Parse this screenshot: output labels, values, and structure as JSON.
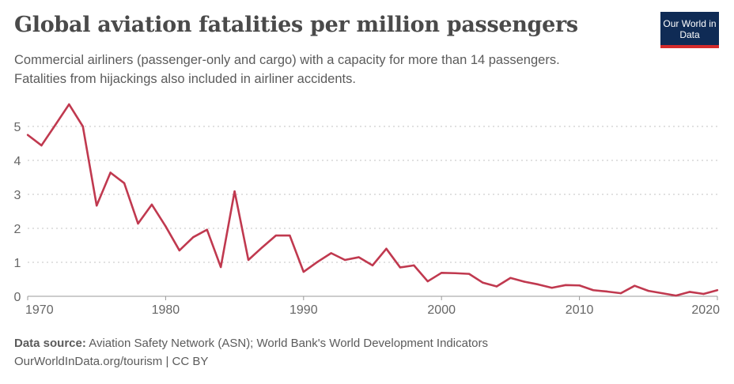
{
  "header": {
    "title": "Global aviation fatalities per million passengers",
    "subtitle": "Commercial airliners (passenger-only and cargo) with a capacity for more than 14 passengers. Fatalities from hijackings also included in airliner accidents.",
    "logo_text": "Our World in Data"
  },
  "footer": {
    "source_label": "Data source:",
    "source_text": "Aviation Safety Network (ASN); World Bank's World Development Indicators",
    "link": "OurWorldInData.org/tourism | CC BY"
  },
  "chart_data": {
    "type": "line",
    "title": "Global aviation fatalities per million passengers",
    "xlabel": "",
    "ylabel": "",
    "xlim": [
      1970,
      2020
    ],
    "ylim": [
      0,
      5.7
    ],
    "x_ticks": [
      1970,
      1980,
      1990,
      2000,
      2010,
      2020
    ],
    "y_ticks": [
      0,
      1,
      2,
      3,
      4,
      5
    ],
    "grid": "horizontal dotted",
    "line_color": "#c0394f",
    "x": [
      1970,
      1971,
      1972,
      1973,
      1974,
      1975,
      1976,
      1977,
      1978,
      1979,
      1980,
      1981,
      1982,
      1983,
      1984,
      1985,
      1986,
      1987,
      1988,
      1989,
      1990,
      1991,
      1992,
      1993,
      1994,
      1995,
      1996,
      1997,
      1998,
      1999,
      2000,
      2001,
      2002,
      2003,
      2004,
      2005,
      2006,
      2007,
      2008,
      2009,
      2010,
      2011,
      2012,
      2013,
      2014,
      2015,
      2016,
      2017,
      2018,
      2019,
      2020
    ],
    "values": [
      4.75,
      4.44,
      5.04,
      5.65,
      5.0,
      2.67,
      3.64,
      3.33,
      2.14,
      2.7,
      2.06,
      1.35,
      1.74,
      1.96,
      0.86,
      3.09,
      1.07,
      1.44,
      1.79,
      1.79,
      0.72,
      1.01,
      1.27,
      1.07,
      1.15,
      0.91,
      1.4,
      0.85,
      0.91,
      0.44,
      0.69,
      0.68,
      0.66,
      0.4,
      0.29,
      0.54,
      0.43,
      0.35,
      0.25,
      0.33,
      0.32,
      0.18,
      0.14,
      0.09,
      0.31,
      0.16,
      0.09,
      0.02,
      0.13,
      0.07,
      0.18
    ]
  }
}
